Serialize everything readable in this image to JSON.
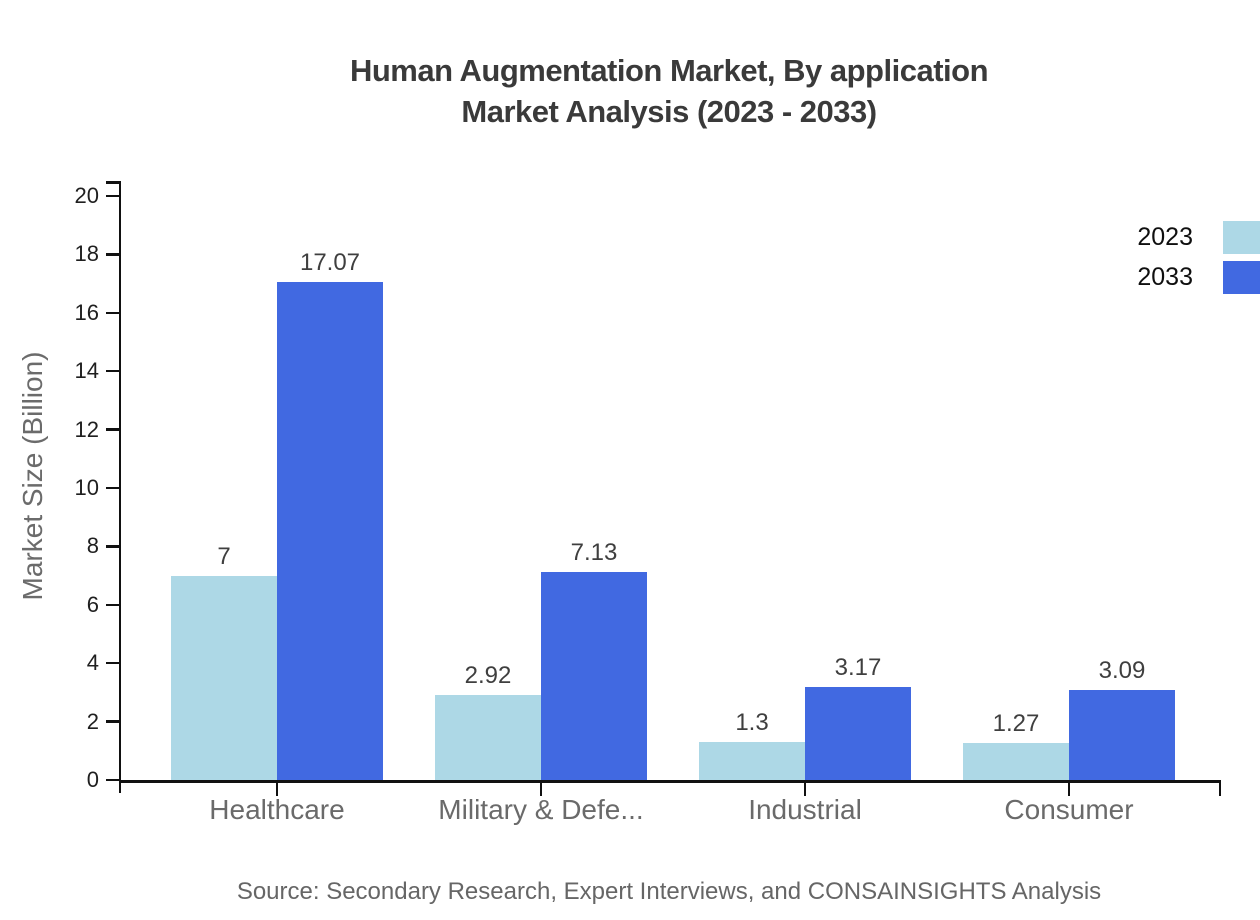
{
  "title": {
    "line1": "Human Augmentation Market, By application",
    "line2": "Market Analysis (2023 - 2033)"
  },
  "source": {
    "text": "Source: Secondary Research, Expert Interviews, and CONSAINSIGHTS Analysis"
  },
  "legend": {
    "position": "top-right",
    "items": [
      {
        "label": "2023",
        "color": "#ADD8E6"
      },
      {
        "label": "2033",
        "color": "#4169E1"
      }
    ]
  },
  "colors": {
    "series_2023": "#ADD8E6",
    "series_2033": "#4169E1",
    "axis": "#111111",
    "title_text": "#3a3a3a",
    "value_text": "#3f3f3f",
    "category_text": "#6a6a6a",
    "tick_text": "#1f1f1f",
    "source_text": "#666666"
  },
  "chart_data": {
    "type": "bar",
    "title": "Human Augmentation Market, By application Market Analysis (2023 - 2033)",
    "categories": [
      "Healthcare",
      "Military & Defe...",
      "Industrial",
      "Consumer"
    ],
    "series": [
      {
        "name": "2023",
        "color": "#ADD8E6",
        "values": [
          7,
          2.92,
          1.3,
          1.27
        ]
      },
      {
        "name": "2033",
        "color": "#4169E1",
        "values": [
          17.07,
          7.13,
          3.17,
          3.09
        ]
      }
    ],
    "value_labels": [
      [
        "7",
        "2.92",
        "1.3",
        "1.27"
      ],
      [
        "17.07",
        "7.13",
        "3.17",
        "3.09"
      ]
    ],
    "xlabel": "",
    "ylabel": "Market Size (Billion)",
    "ylim": [
      0,
      20
    ],
    "ytick_step": 2,
    "yticks": [
      0,
      2,
      4,
      6,
      8,
      10,
      12,
      14,
      16,
      18,
      20
    ],
    "grid": false,
    "legend_position": "top-right",
    "bar_gap_within_group": 0
  }
}
